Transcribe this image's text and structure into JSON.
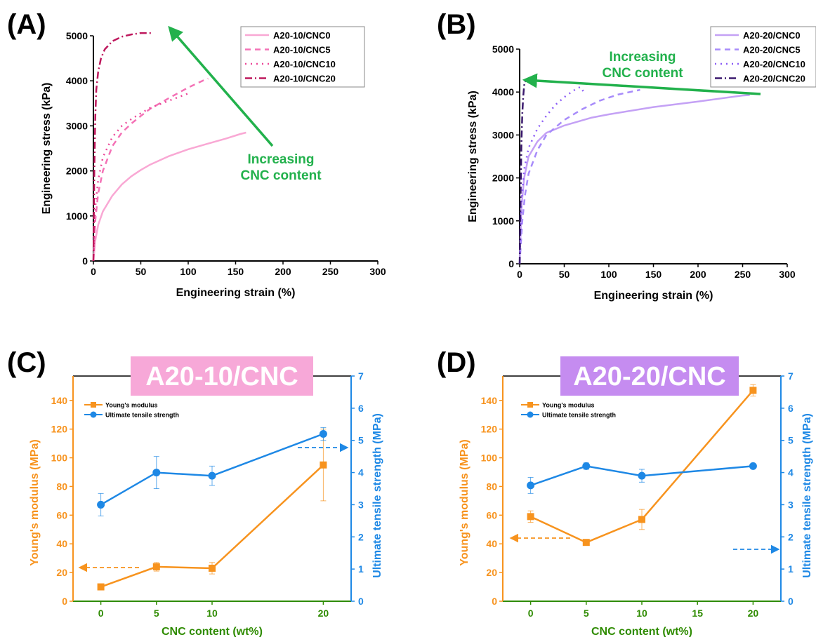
{
  "colors": {
    "green_arrow": "#22b14c",
    "orange": "#f7931e",
    "blue": "#1e88e5",
    "axis_green": "#2e8b00",
    "pink_banner": "#f7a8d8",
    "purple_banner": "#c58cf0"
  },
  "chart_data": [
    {
      "panel": "(A)",
      "type": "line",
      "xlabel": "Engineering strain (%)",
      "ylabel": "Engineering stress (kPa)",
      "xlim": [
        0,
        300
      ],
      "ylim": [
        0,
        5000
      ],
      "xticks": [
        0,
        50,
        100,
        150,
        200,
        250,
        300
      ],
      "yticks": [
        0,
        1000,
        2000,
        3000,
        4000,
        5000
      ],
      "legend_position": "top-right",
      "annotation": [
        "Increasing",
        "CNC content"
      ],
      "series": [
        {
          "name": "A20-10/CNC0",
          "color": "#f9a8d4",
          "dash": "solid",
          "x": [
            0,
            2,
            5,
            10,
            20,
            30,
            40,
            50,
            60,
            80,
            100,
            120,
            140,
            155,
            161
          ],
          "y": [
            0,
            450,
            800,
            1100,
            1450,
            1700,
            1880,
            2020,
            2140,
            2330,
            2480,
            2600,
            2720,
            2820,
            2850
          ]
        },
        {
          "name": "A20-10/CNC5",
          "color": "#f472b6",
          "dash": "8,6",
          "x": [
            0,
            2,
            5,
            10,
            20,
            30,
            40,
            50,
            60,
            80,
            100,
            115,
            121
          ],
          "y": [
            0,
            900,
            1500,
            2000,
            2550,
            2850,
            3050,
            3220,
            3380,
            3620,
            3850,
            4000,
            4050
          ]
        },
        {
          "name": "A20-10/CNC10",
          "color": "#ec4899",
          "dash": "2,6",
          "x": [
            0,
            2,
            5,
            10,
            20,
            30,
            40,
            50,
            60,
            80,
            100
          ],
          "y": [
            0,
            1200,
            1800,
            2300,
            2750,
            3000,
            3150,
            3280,
            3400,
            3560,
            3720
          ]
        },
        {
          "name": "A20-10/CNC20",
          "color": "#be185d",
          "dash": "10,4,2,4",
          "x": [
            0,
            1,
            2,
            3,
            5,
            8,
            12,
            20,
            30,
            40,
            50,
            58,
            62
          ],
          "y": [
            0,
            2000,
            3200,
            3800,
            4200,
            4500,
            4700,
            4880,
            4980,
            5030,
            5060,
            5060,
            5060
          ]
        }
      ]
    },
    {
      "panel": "(B)",
      "type": "line",
      "xlabel": "Engineering strain (%)",
      "ylabel": "Engineering stress (kPa)",
      "xlim": [
        0,
        300
      ],
      "ylim": [
        0,
        5000
      ],
      "xticks": [
        0,
        50,
        100,
        150,
        200,
        250,
        300
      ],
      "yticks": [
        0,
        1000,
        2000,
        3000,
        4000,
        5000
      ],
      "legend_position": "top-right",
      "annotation": [
        "Increasing",
        "CNC content"
      ],
      "series": [
        {
          "name": "A20-20/CNC0",
          "color": "#c4a1f5",
          "dash": "solid",
          "x": [
            0,
            2,
            5,
            10,
            20,
            30,
            50,
            80,
            100,
            150,
            200,
            250,
            258
          ],
          "y": [
            0,
            1300,
            2000,
            2500,
            2850,
            3050,
            3220,
            3400,
            3480,
            3650,
            3780,
            3920,
            3930
          ]
        },
        {
          "name": "A20-20/CNC5",
          "color": "#a78bfa",
          "dash": "8,6",
          "x": [
            0,
            3,
            6,
            10,
            20,
            30,
            50,
            70,
            90,
            110,
            130,
            135
          ],
          "y": [
            0,
            1000,
            1600,
            2100,
            2650,
            3000,
            3350,
            3600,
            3800,
            3940,
            4030,
            4050
          ]
        },
        {
          "name": "A20-20/CNC10",
          "color": "#8b5cf6",
          "dash": "2,6",
          "x": [
            0,
            2,
            5,
            10,
            20,
            30,
            40,
            50,
            60,
            68,
            72
          ],
          "y": [
            0,
            1400,
            2200,
            2700,
            3150,
            3450,
            3700,
            3880,
            4030,
            4120,
            4000
          ]
        },
        {
          "name": "A20-20/CNC20",
          "color": "#3b1a6e",
          "dash": "10,4,2,4",
          "x": [
            0,
            1,
            2,
            3,
            4,
            5,
            6,
            7
          ],
          "y": [
            0,
            1500,
            2800,
            3500,
            3900,
            4150,
            4250,
            4250
          ]
        }
      ]
    },
    {
      "panel": "(C)",
      "type": "line",
      "banner": "A20-10/CNC",
      "xlabel": "CNC content (wt%)",
      "ylabel_left": "Young's modulus (MPa)",
      "ylabel_right": "Ultimate tensile strength (MPa)",
      "xlim": [
        -2.5,
        22.5
      ],
      "ylim_left": [
        0,
        157
      ],
      "ylim_right": [
        0,
        7
      ],
      "xticks": [
        0,
        5,
        10,
        20
      ],
      "yticks_left": [
        0,
        20,
        40,
        60,
        80,
        100,
        120,
        140
      ],
      "yticks_right": [
        0,
        1,
        2,
        3,
        4,
        5,
        6,
        7
      ],
      "legend_position": "top-left",
      "series": [
        {
          "name": "Young's modulus",
          "axis": "left",
          "color": "#f7931e",
          "marker": "square",
          "x": [
            0,
            5,
            10,
            20
          ],
          "y": [
            10,
            24,
            23,
            95
          ],
          "err": [
            1,
            3,
            4,
            25
          ]
        },
        {
          "name": "Ultimate tensile strength",
          "axis": "right",
          "color": "#1e88e5",
          "marker": "circle",
          "x": [
            0,
            5,
            10,
            20
          ],
          "y": [
            3.0,
            4.0,
            3.9,
            5.2
          ],
          "err": [
            0.35,
            0.5,
            0.3,
            0.2
          ]
        }
      ]
    },
    {
      "panel": "(D)",
      "type": "line",
      "banner": "A20-20/CNC",
      "xlabel": "CNC content (wt%)",
      "ylabel_left": "Young's modulus (MPa)",
      "ylabel_right": "Ultimate tensile strength (MPa)",
      "xlim": [
        -2.5,
        22.5
      ],
      "ylim_left": [
        0,
        157
      ],
      "ylim_right": [
        0,
        7
      ],
      "xticks": [
        0,
        5,
        10,
        15,
        20
      ],
      "yticks_left": [
        0,
        20,
        40,
        60,
        80,
        100,
        120,
        140
      ],
      "yticks_right": [
        0,
        1,
        2,
        3,
        4,
        5,
        6,
        7
      ],
      "legend_position": "top-left",
      "series": [
        {
          "name": "Young's modulus",
          "axis": "left",
          "color": "#f7931e",
          "marker": "square",
          "x": [
            0,
            5,
            10,
            20
          ],
          "y": [
            59,
            41,
            57,
            147
          ],
          "err": [
            4,
            2,
            7,
            4
          ]
        },
        {
          "name": "Ultimate tensile strength",
          "axis": "right",
          "color": "#1e88e5",
          "marker": "circle",
          "x": [
            0,
            5,
            10,
            20
          ],
          "y": [
            3.6,
            4.2,
            3.9,
            4.2
          ],
          "err": [
            0.25,
            0.1,
            0.2,
            0.05
          ]
        }
      ]
    }
  ]
}
